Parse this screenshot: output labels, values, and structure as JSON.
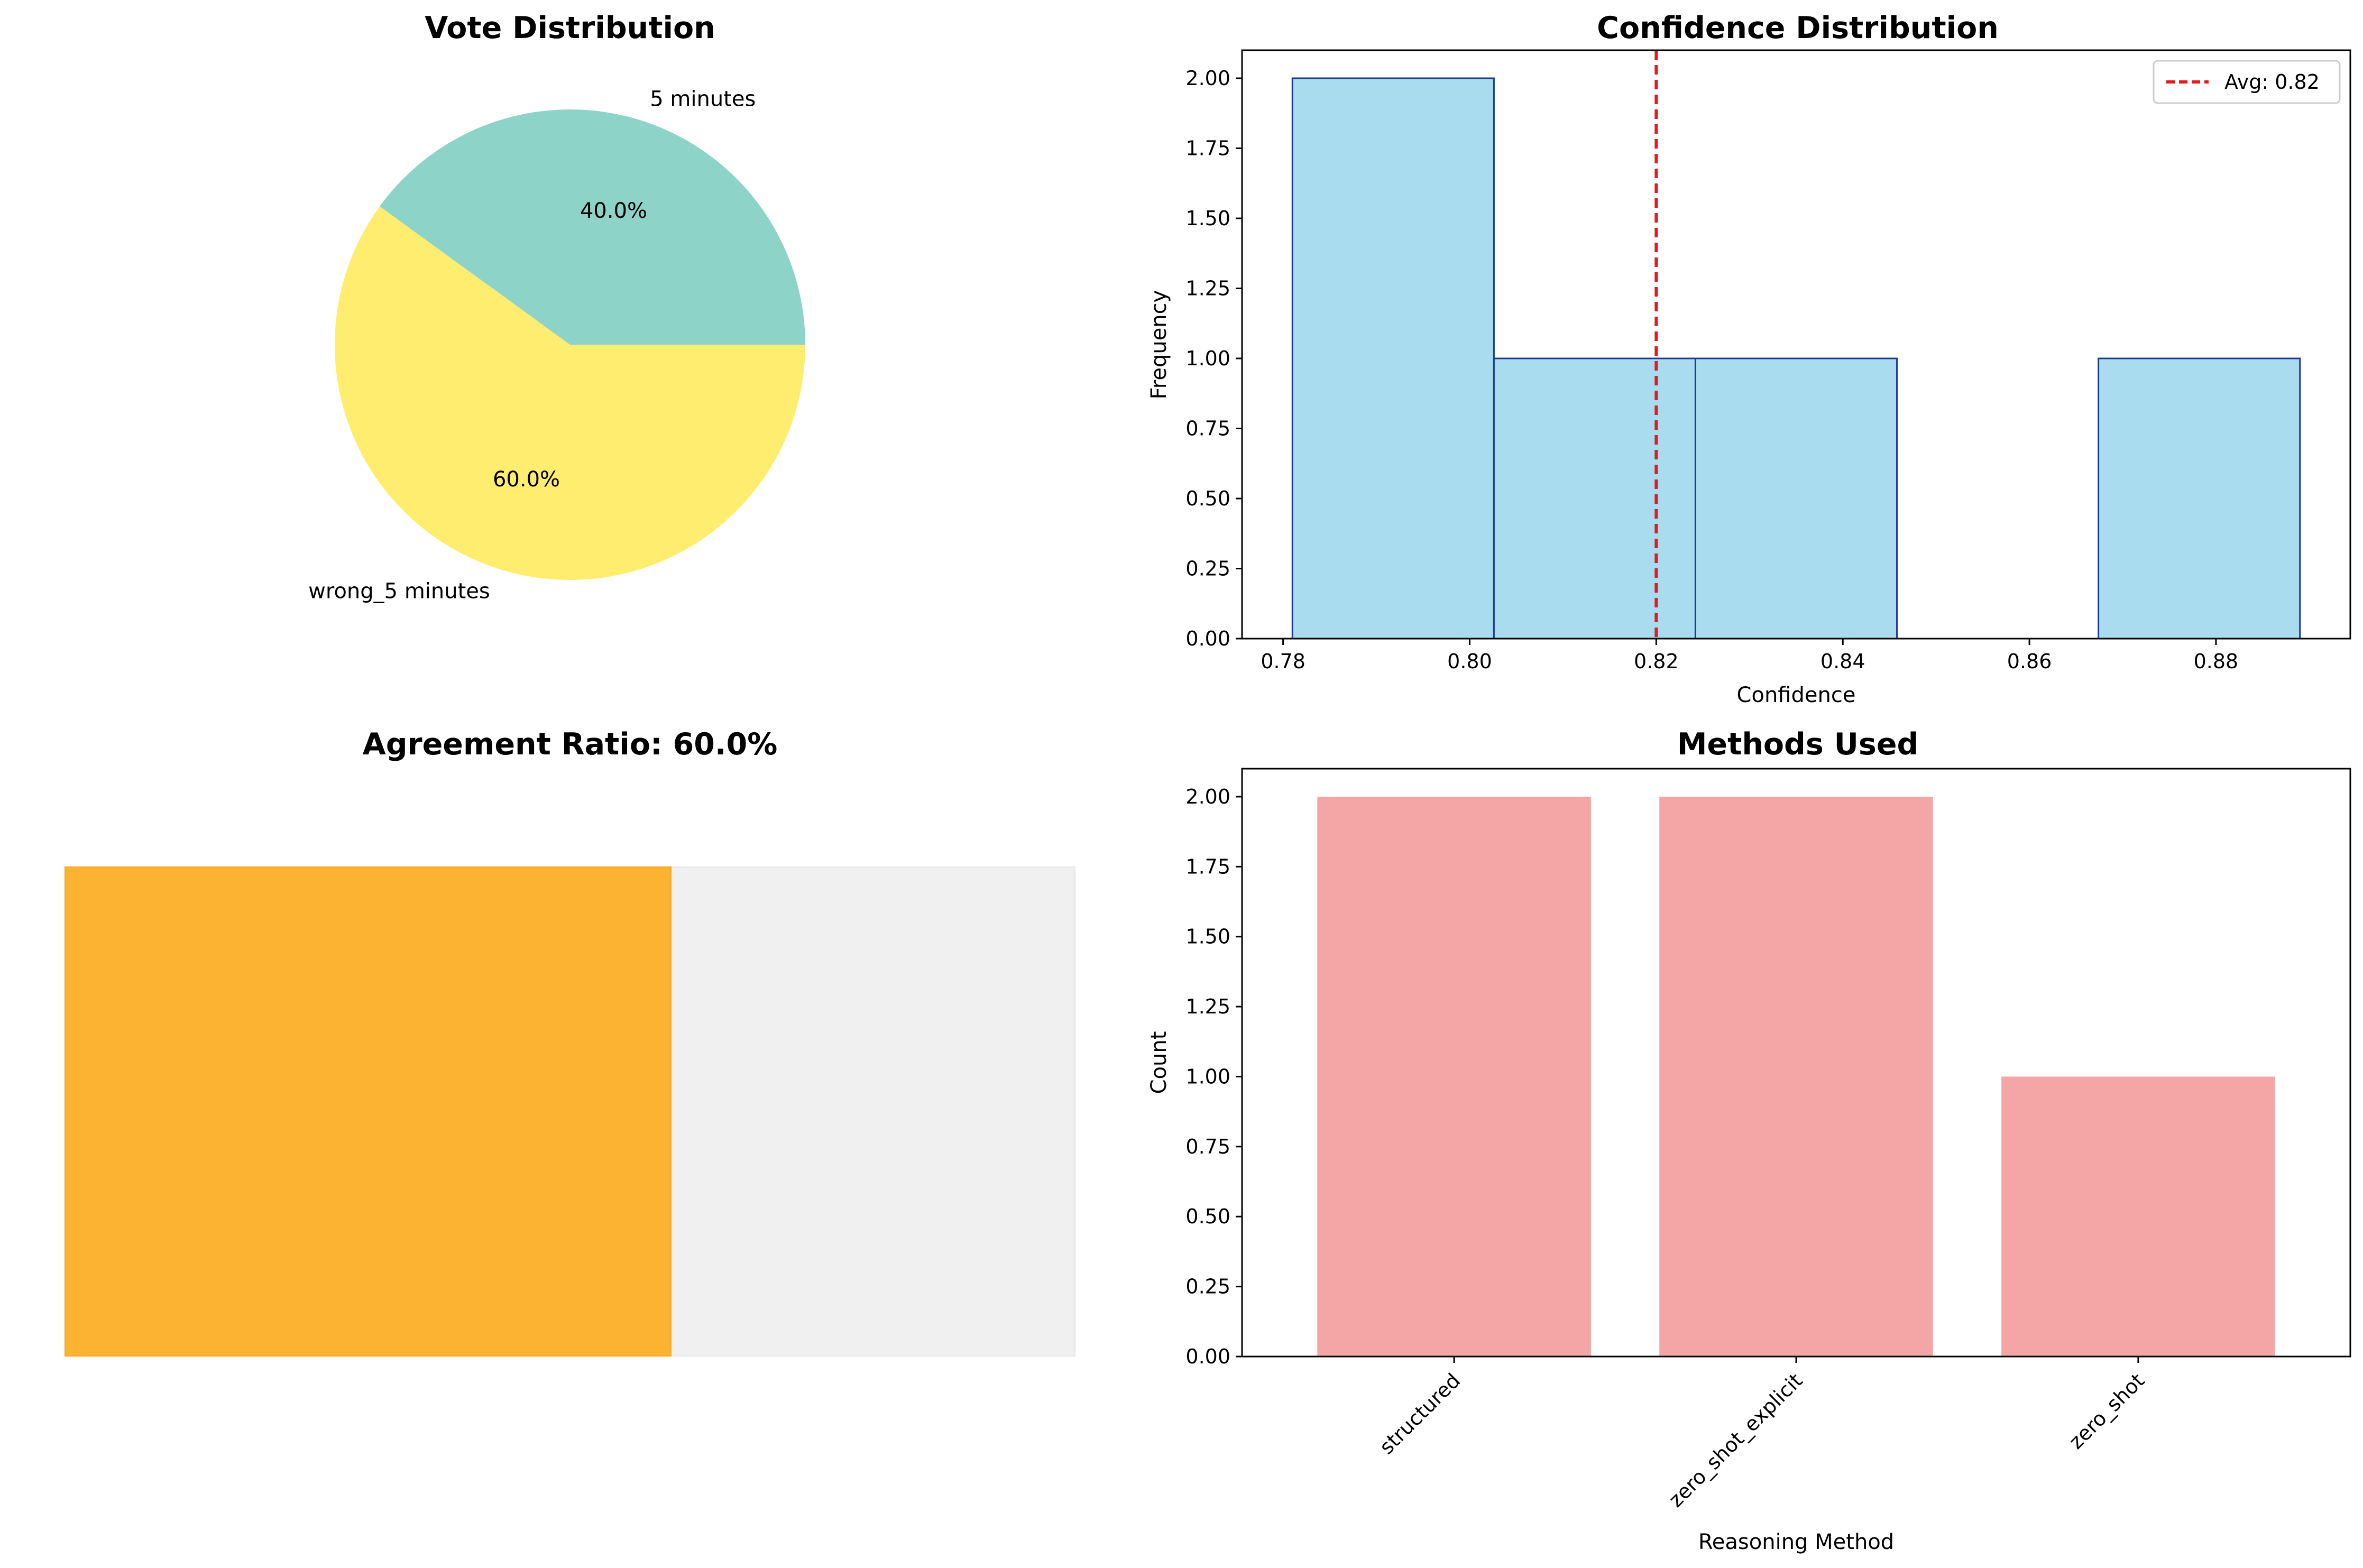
{
  "chart_data": [
    {
      "type": "pie",
      "title": "Vote Distribution",
      "labels": [
        "5 minutes",
        "wrong_5 minutes"
      ],
      "values": [
        40.0,
        60.0
      ],
      "value_labels": [
        "40.0%",
        "60.0%"
      ],
      "colors": [
        "#8dd3c7",
        "#ffed6f"
      ],
      "start_angle_deg": 0
    },
    {
      "type": "bar",
      "subtype": "histogram",
      "title": "Confidence Distribution",
      "xlabel": "Confidence",
      "ylabel": "Frequency",
      "bins": [
        {
          "x0": 0.781,
          "x1": 0.8026,
          "count": 2
        },
        {
          "x0": 0.8026,
          "x1": 0.8242,
          "count": 1
        },
        {
          "x0": 0.8242,
          "x1": 0.8458,
          "count": 1
        },
        {
          "x0": 0.8458,
          "x1": 0.8674,
          "count": 0
        },
        {
          "x0": 0.8674,
          "x1": 0.889,
          "count": 1
        }
      ],
      "xlim": [
        0.7756,
        0.8944
      ],
      "ylim": [
        0,
        2.1
      ],
      "xticks": [
        0.78,
        0.8,
        0.82,
        0.84,
        0.86,
        0.88
      ],
      "xtick_labels": [
        "0.78",
        "0.80",
        "0.82",
        "0.84",
        "0.86",
        "0.88"
      ],
      "yticks": [
        0,
        0.25,
        0.5,
        0.75,
        1.0,
        1.25,
        1.5,
        1.75,
        2.0
      ],
      "ytick_labels": [
        "0.00",
        "0.25",
        "0.50",
        "0.75",
        "1.00",
        "1.25",
        "1.50",
        "1.75",
        "2.00"
      ],
      "average_line": {
        "value": 0.82,
        "label": "Avg: 0.82",
        "color": "#e41a1c"
      },
      "legend_position": "top-right",
      "bar_color": "#a9dcee",
      "edge_color": "#1f3a93"
    },
    {
      "type": "bar",
      "subtype": "progress",
      "title": "Agreement Ratio: 60.0%",
      "title_color": "#f5a31a",
      "value": 0.6,
      "fill_color": "#fbb331",
      "track_color": "#f0f0f0"
    },
    {
      "type": "bar",
      "title": "Methods Used",
      "xlabel": "Reasoning Method",
      "ylabel": "Count",
      "categories": [
        "structured",
        "zero_shot_explicit",
        "zero_shot"
      ],
      "values": [
        2,
        2,
        1
      ],
      "ylim": [
        0,
        2.1
      ],
      "yticks": [
        0,
        0.25,
        0.5,
        0.75,
        1.0,
        1.25,
        1.5,
        1.75,
        2.0
      ],
      "ytick_labels": [
        "0.00",
        "0.25",
        "0.50",
        "0.75",
        "1.00",
        "1.25",
        "1.50",
        "1.75",
        "2.00"
      ],
      "xtick_rotation_deg": 45,
      "bar_color": "#f4a6a6"
    }
  ]
}
